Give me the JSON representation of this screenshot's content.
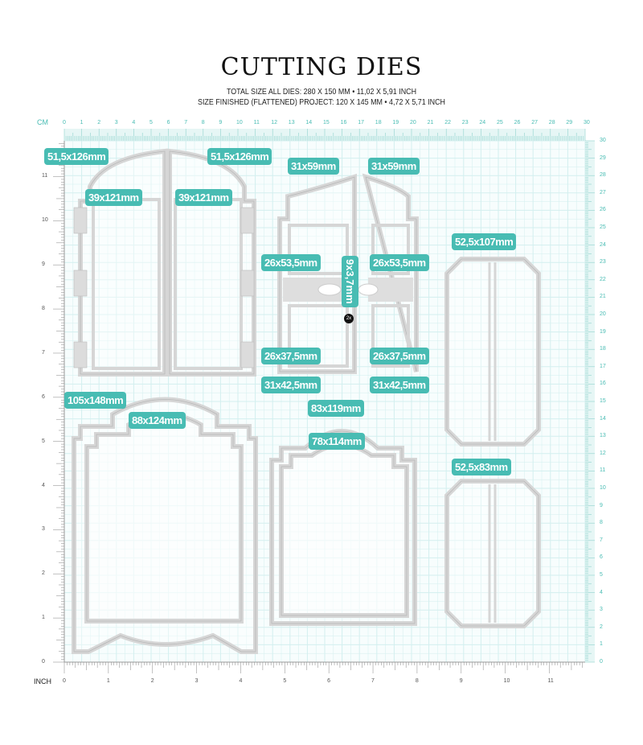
{
  "title": "CUTTING DIES",
  "subtitle_1": "TOTAL SIZE ALL DIES: 280 X 150 MM • 11,02 X 5,91 INCH",
  "subtitle_2": "SIZE FINISHED (FLATTENED) PROJECT: 120 X 145 MM • 4,72 X 5,71 INCH",
  "rulers": {
    "cm_label": "CM",
    "inch_label": "INCH",
    "cm_max": 30,
    "inch_max": 11
  },
  "colors": {
    "accent": "#48bcb3",
    "grid": "#d3efef",
    "die": "#d6d6d6"
  },
  "labels": {
    "l1": "51,5x126mm",
    "l2": "51,5x126mm",
    "l3": "31x59mm",
    "l4": "31x59mm",
    "l5": "39x121mm",
    "l6": "39x121mm",
    "l7": "52,5x107mm",
    "l8": "26x53,5mm",
    "l9": "26x53,5mm",
    "l10": "9x3,7mm",
    "l11": "26x37,5mm",
    "l12": "26x37,5mm",
    "l13": "31x42,5mm",
    "l14": "31x42,5mm",
    "l15": "105x148mm",
    "l16": "83x119mm",
    "l17": "88x124mm",
    "l18": "78x114mm",
    "l19": "52,5x83mm",
    "badge": "2x"
  }
}
